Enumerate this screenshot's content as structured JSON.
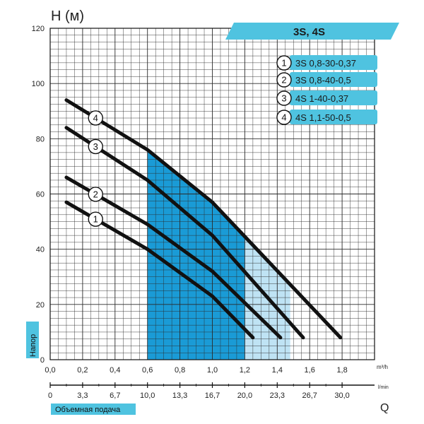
{
  "chart_data": {
    "type": "line",
    "title": "3S, 4S",
    "ylabel": "H (м)",
    "ylabel_side": "Напор",
    "xlabel": "Объемная подача",
    "x_unit": "m³/h",
    "x2_unit": "l/min",
    "x2_label": "Q",
    "ylim": [
      0,
      120
    ],
    "xlim": [
      0,
      2.0
    ],
    "grid": true,
    "legend_position": "top-right",
    "y_ticks": [
      "0",
      "20",
      "40",
      "60",
      "80",
      "100",
      "120"
    ],
    "x_ticks": [
      "0,0",
      "0,2",
      "0,4",
      "0,6",
      "0,8",
      "1,0",
      "1,2",
      "1,4",
      "1,6",
      "1,8"
    ],
    "x2_ticks": [
      "0",
      "3,3",
      "6,7",
      "10,0",
      "13,3",
      "16,7",
      "20,0",
      "23,3",
      "26,7",
      "30,0"
    ],
    "series": [
      {
        "name": "3S 0,8-30-0,37",
        "number": "1",
        "x": [
          0.1,
          0.6,
          1.0,
          1.25
        ],
        "y": [
          57,
          40,
          23,
          8
        ]
      },
      {
        "name": "3S 0,8-40-0,5",
        "number": "2",
        "x": [
          0.1,
          0.6,
          1.0,
          1.42
        ],
        "y": [
          66,
          49,
          32,
          8
        ]
      },
      {
        "name": "4S 1-40-0,37",
        "number": "3",
        "x": [
          0.1,
          0.6,
          1.0,
          1.56
        ],
        "y": [
          84,
          65,
          45,
          8
        ]
      },
      {
        "name": "4S 1,1-50-0,5",
        "number": "4",
        "x": [
          0.1,
          0.6,
          1.0,
          1.79
        ],
        "y": [
          94,
          76,
          57,
          8
        ]
      }
    ],
    "colors": {
      "band_dark": "#1a9bd6",
      "band_mid": "#6cc2e8",
      "band_light": "#bfe3f4",
      "header": "#4fc3e0",
      "curve": "#111111"
    }
  }
}
